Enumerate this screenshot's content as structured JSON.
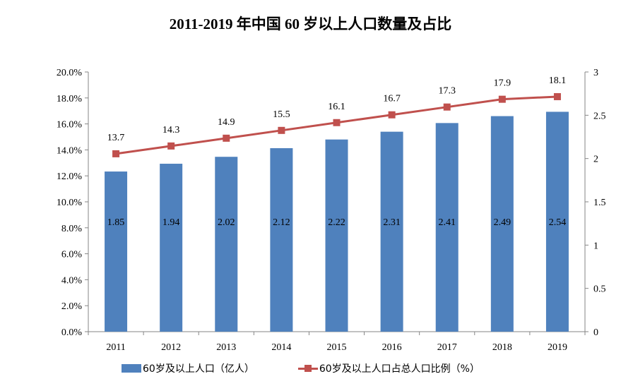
{
  "chart_data": {
    "type": "bar+line",
    "title": "2011-2019 年中国 60 岁以上人口数量及占比",
    "categories": [
      "2011",
      "2012",
      "2013",
      "2014",
      "2015",
      "2016",
      "2017",
      "2018",
      "2019"
    ],
    "series": [
      {
        "name": "60岁及以上人口（亿人）",
        "type": "bar",
        "axis": "right",
        "color": "#4F81BD",
        "values": [
          1.85,
          1.94,
          2.02,
          2.12,
          2.22,
          2.31,
          2.41,
          2.49,
          2.54
        ],
        "labels": [
          "1.85",
          "1.94",
          "2.02",
          "2.12",
          "2.22",
          "2.31",
          "2.41",
          "2.49",
          "2.54"
        ]
      },
      {
        "name": "60岁及以上人口占总人口比例（%）",
        "type": "line",
        "axis": "left",
        "color": "#C0504D",
        "marker": "square",
        "values": [
          13.7,
          14.3,
          14.9,
          15.5,
          16.1,
          16.7,
          17.3,
          17.9,
          18.1
        ],
        "labels": [
          "13.7",
          "14.3",
          "14.9",
          "15.5",
          "16.1",
          "16.7",
          "17.3",
          "17.9",
          "18.1"
        ]
      }
    ],
    "left_axis": {
      "ylim": [
        0,
        20
      ],
      "ticks": [
        "0.0%",
        "2.0%",
        "4.0%",
        "6.0%",
        "8.0%",
        "10.0%",
        "12.0%",
        "14.0%",
        "16.0%",
        "18.0%",
        "20.0%"
      ]
    },
    "right_axis": {
      "ylim": [
        0,
        3
      ],
      "ticks": [
        "0",
        "0.5",
        "1",
        "1.5",
        "2",
        "2.5",
        "3"
      ]
    },
    "grid": false,
    "legend_placement": "bottom"
  }
}
